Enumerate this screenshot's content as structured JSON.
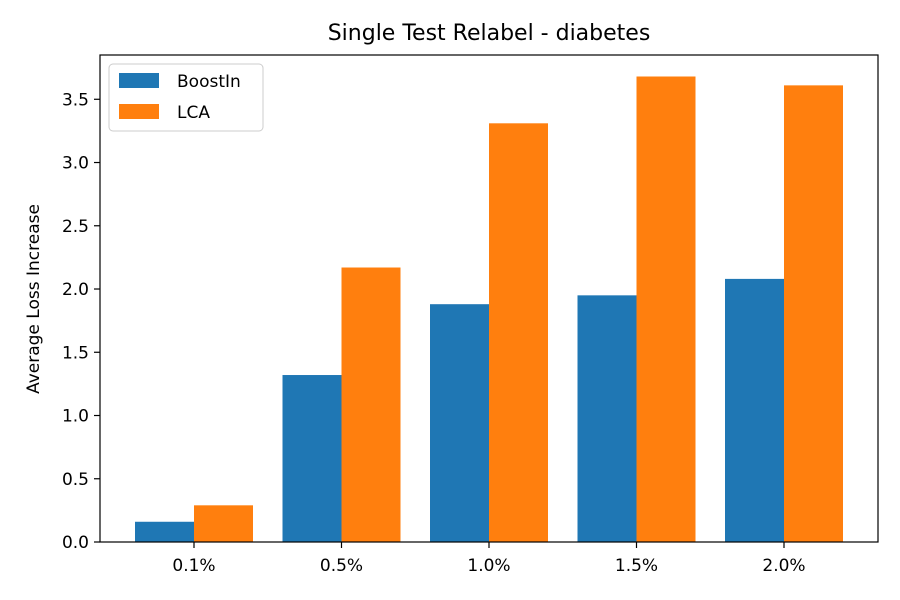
{
  "chart_data": {
    "type": "bar",
    "title": "Single Test Relabel - diabetes",
    "xlabel": "",
    "ylabel": "Average Loss Increase",
    "categories": [
      "0.1%",
      "0.5%",
      "1.0%",
      "1.5%",
      "2.0%"
    ],
    "series": [
      {
        "name": "BoostIn",
        "color": "#1f77b4",
        "values": [
          0.16,
          1.32,
          1.88,
          1.95,
          2.08
        ]
      },
      {
        "name": "LCA",
        "color": "#ff7f0e",
        "values": [
          0.29,
          2.17,
          3.31,
          3.68,
          3.61
        ]
      }
    ],
    "ylim": [
      0,
      3.85
    ],
    "yticks": [
      "0.0",
      "0.5",
      "1.0",
      "1.5",
      "2.0",
      "2.5",
      "3.0",
      "3.5"
    ],
    "grid": false,
    "legend_position": "top-left"
  }
}
